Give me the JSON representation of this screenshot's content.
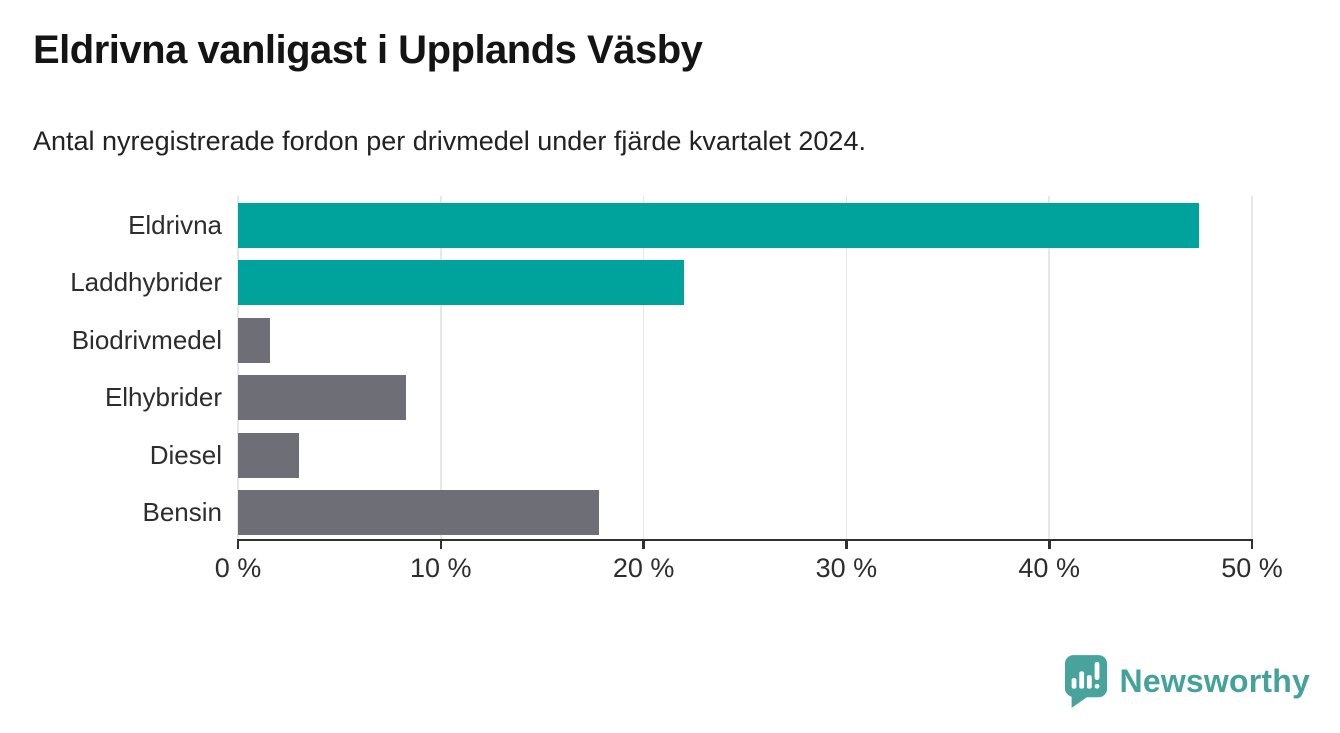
{
  "header": {
    "title": "Eldrivna vanligast i Upplands Väsby",
    "subtitle": "Antal nyregistrerade fordon per drivmedel under fjärde kvartalet 2024."
  },
  "chart_data": {
    "type": "bar",
    "orientation": "horizontal",
    "title": "Eldrivna vanligast i Upplands Väsby",
    "subtitle": "Antal nyregistrerade fordon per drivmedel under fjärde kvartalet 2024.",
    "categories": [
      "Eldrivna",
      "Laddhybrider",
      "Biodrivmedel",
      "Elhybrider",
      "Diesel",
      "Bensin"
    ],
    "values": [
      47.4,
      22.0,
      1.6,
      8.3,
      3.0,
      17.8
    ],
    "unit": "%",
    "bar_colors": [
      "#00a39b",
      "#00a39b",
      "#6e6e76",
      "#6e6e76",
      "#6e6e76",
      "#6e6e76"
    ],
    "highlight_color": "#00a39b",
    "default_color": "#6e6e76",
    "xlabel": "",
    "ylabel": "",
    "xlim": [
      0,
      50
    ],
    "xticks": [
      0,
      10,
      20,
      30,
      40,
      50
    ],
    "xtick_labels": [
      "0 %",
      "10 %",
      "20 %",
      "30 %",
      "40 %",
      "50 %"
    ],
    "grid": "vertical gridlines on",
    "legend": "none"
  },
  "footer": {
    "brand": "Newsworthy",
    "brand_color": "#45a29a",
    "logo_icon_color": "#47a39c",
    "logo_icon": "speech-bubble-bar-chart-icon"
  }
}
